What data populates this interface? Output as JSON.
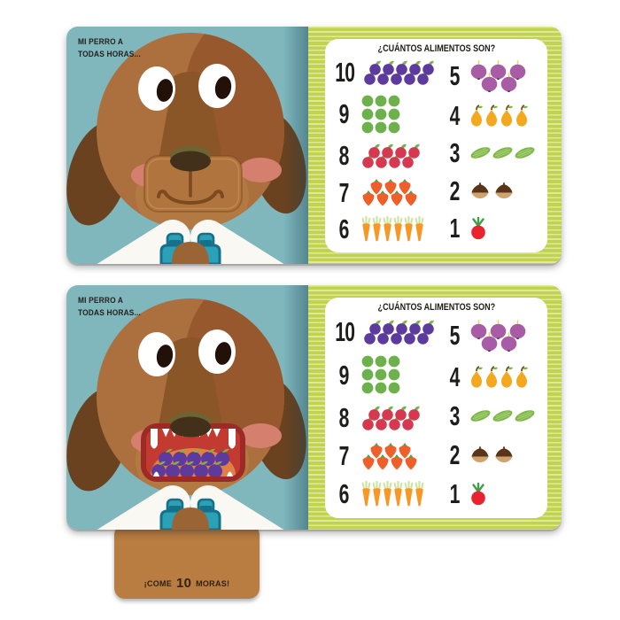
{
  "captions": {
    "line1": "MI PERRO A",
    "line2": "TODAS HORAS..."
  },
  "panel": {
    "title": "¿CUÁNTOS ALIMENTOS SON?",
    "rows_left": [
      {
        "number": "10",
        "item": "plums",
        "count": 10,
        "rows": [
          5,
          5
        ]
      },
      {
        "number": "9",
        "item": "green-apples",
        "count": 9,
        "rows": [
          3,
          3,
          3
        ]
      },
      {
        "number": "8",
        "item": "red-apples",
        "count": 8,
        "rows": [
          4,
          4
        ]
      },
      {
        "number": "7",
        "item": "strawberries",
        "count": 7,
        "rows": [
          3,
          4
        ]
      },
      {
        "number": "6",
        "item": "carrots",
        "count": 6,
        "rows": [
          6
        ]
      }
    ],
    "rows_right": [
      {
        "number": "5",
        "item": "onions",
        "count": 5,
        "rows": [
          3,
          2
        ]
      },
      {
        "number": "4",
        "item": "pears",
        "count": 4,
        "rows": [
          4
        ]
      },
      {
        "number": "3",
        "item": "cucumbers",
        "count": 3,
        "rows": [
          3
        ]
      },
      {
        "number": "2",
        "item": "chestnuts",
        "count": 2,
        "rows": [
          2
        ]
      },
      {
        "number": "1",
        "item": "radish",
        "count": 1,
        "rows": [
          1
        ]
      }
    ]
  },
  "spreads": [
    {
      "id": "top",
      "dog_mouth": "closed",
      "berries_in_mouth": 0
    },
    {
      "id": "bottom",
      "dog_mouth": "open",
      "berries_in_mouth": 10
    }
  ],
  "pull_tab": {
    "text_pre": "¡COME",
    "number": "10",
    "text_post": "MORAS!"
  },
  "colors": {
    "left_page_bg": "#7fb7bd",
    "spine_shadow": "#19414e",
    "right_page_border": "#cbd957",
    "panel_bg": "#ffffff",
    "text": "#1d1c17",
    "dog_head": "#ac6f3e",
    "dog_dark_patch": "#96582c",
    "dog_snout": "#8a5527",
    "dog_ears": "#6b421f",
    "cheeks": "#d5806f",
    "mouth_rim": "#9e2a28",
    "mouth_red": "#c23a30",
    "tongue": "#e08045",
    "berry_purple": "#5c3a9e",
    "overalls_teal": "#2ba0b6",
    "tab_brown": "#b97c41"
  }
}
